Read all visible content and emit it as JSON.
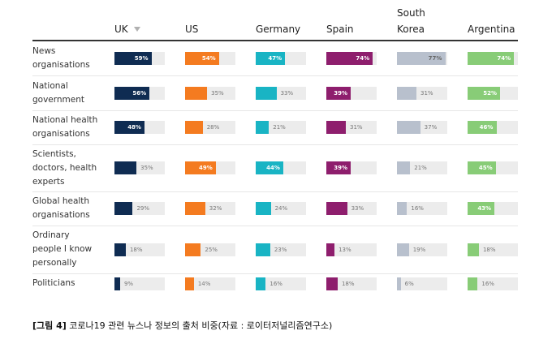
{
  "chart_data": {
    "type": "bar-table",
    "categories": [
      "News\norganisations",
      "National\ngovernment",
      "National health\norganisations",
      "Scientists,\ndoctors, health\nexperts",
      "Global health\norganisations",
      "Ordinary\npeople I know\npersonally",
      "Politicians"
    ],
    "xlim": [
      0,
      80
    ],
    "series": [
      {
        "name": "UK",
        "color": "#0f2c52",
        "label_color": "#ffffff",
        "values": [
          59,
          56,
          48,
          35,
          29,
          18,
          9
        ],
        "value_labels": [
          "59%",
          "56%",
          "48%",
          "35%",
          "29%",
          "18%",
          "9%"
        ]
      },
      {
        "name": "US",
        "color": "#f47b20",
        "label_color": "#ffffff",
        "values": [
          54,
          35,
          28,
          49,
          32,
          25,
          14
        ],
        "value_labels": [
          "54%",
          "35%",
          "28%",
          "49%",
          "32%",
          "25%",
          "14%"
        ]
      },
      {
        "name": "Germany",
        "color": "#19b4c4",
        "label_color": "#ffffff",
        "values": [
          47,
          33,
          21,
          44,
          24,
          23,
          16
        ],
        "value_labels": [
          "47%",
          "33%",
          "21%",
          "44%",
          "24%",
          "23%",
          "16%"
        ]
      },
      {
        "name": "Spain",
        "color": "#8e1e6d",
        "label_color": "#ffffff",
        "values": [
          74,
          39,
          31,
          39,
          33,
          13,
          18
        ],
        "value_labels": [
          "74%",
          "39%",
          "31%",
          "39%",
          "33%",
          "13%",
          "18%"
        ]
      },
      {
        "name": "South\nKorea",
        "color": "#b8c0cd",
        "label_color": "#666666",
        "values": [
          77,
          31,
          37,
          21,
          16,
          19,
          6
        ],
        "value_labels": [
          "77%",
          "31%",
          "37%",
          "21%",
          "16%",
          "19%",
          "6%"
        ]
      },
      {
        "name": "Argentina",
        "color": "#88cc77",
        "label_color": "#ffffff",
        "values": [
          74,
          52,
          46,
          45,
          43,
          18,
          16
        ],
        "value_labels": [
          "74%",
          "52%",
          "46%",
          "45%",
          "43%",
          "18%",
          "16%"
        ]
      }
    ],
    "caption_label": "[그림 4]",
    "caption": "코로나19 관련 뉴스나 정보의 출처 비중(자료 : 로이터저널리즘연구소)"
  }
}
